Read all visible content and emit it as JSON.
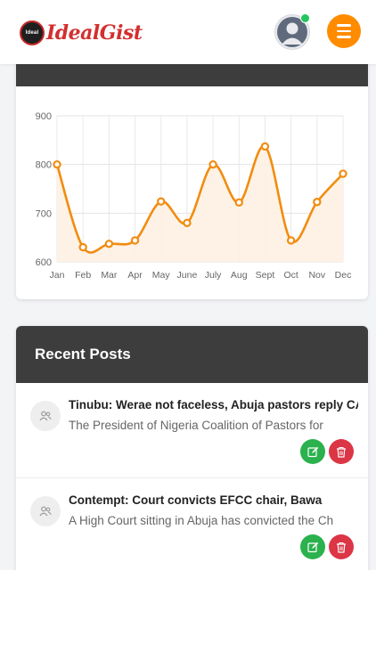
{
  "header": {
    "logo_badge": "Ideal",
    "logo_text": "IdealGist",
    "avatar_icon": "user-avatar-icon",
    "menu_icon": "hamburger-menu-icon",
    "accent": "#ff8c00"
  },
  "chart_data": {
    "type": "line",
    "categories": [
      "Jan",
      "Feb",
      "Mar",
      "Apr",
      "May",
      "June",
      "July",
      "Aug",
      "Sept",
      "Oct",
      "Nov",
      "Dec"
    ],
    "values": [
      800,
      630,
      637,
      644,
      724,
      680,
      800,
      722,
      837,
      644,
      723,
      781
    ],
    "ylim": [
      600,
      900
    ],
    "yticks": [
      600,
      700,
      800,
      900
    ],
    "line_color": "#f28c10",
    "fill_color": "#fdf1e2",
    "grid": true
  },
  "recent_posts": {
    "heading": "Recent Posts",
    "items": [
      {
        "title": "Tinubu: Werae not faceless, Abuja pastors reply CAN",
        "excerpt": "The President of Nigeria Coalition of Pastors for"
      },
      {
        "title": "Contempt: Court convicts EFCC chair, Bawa",
        "excerpt": "A High Court sitting in Abuja has convicted the Ch"
      }
    ]
  }
}
